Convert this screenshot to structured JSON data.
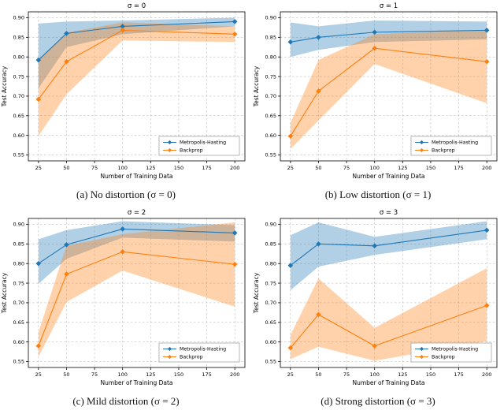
{
  "chart_data": [
    {
      "type": "line",
      "title": "σ = 0",
      "caption": "(a) No distortion (σ = 0)",
      "xlabel": "Number of Training Data",
      "ylabel": "Test Accuracy",
      "x": [
        25,
        50,
        100,
        200
      ],
      "xticks": [
        25,
        50,
        75,
        100,
        125,
        150,
        175,
        200
      ],
      "yticks": [
        0.55,
        0.6,
        0.65,
        0.7,
        0.75,
        0.8,
        0.85,
        0.9
      ],
      "xlim": [
        16,
        209
      ],
      "ylim": [
        0.535,
        0.915
      ],
      "grid": true,
      "legend_position": "lower right",
      "series": [
        {
          "name": "Metropolis-Hasting",
          "color": "#1f77b4",
          "values": [
            0.792,
            0.86,
            0.878,
            0.89
          ],
          "band_low": [
            0.72,
            0.825,
            0.858,
            0.878
          ],
          "band_high": [
            0.885,
            0.89,
            0.893,
            0.9
          ]
        },
        {
          "name": "Backprop",
          "color": "#ff7f0e",
          "values": [
            0.692,
            0.788,
            0.868,
            0.858
          ],
          "band_low": [
            0.598,
            0.705,
            0.842,
            0.838
          ],
          "band_high": [
            0.79,
            0.862,
            0.888,
            0.878
          ]
        }
      ]
    },
    {
      "type": "line",
      "title": "σ = 1",
      "caption": "(b) Low distortion (σ = 1)",
      "xlabel": "Number of Training Data",
      "ylabel": "Test Accuracy",
      "x": [
        25,
        50,
        100,
        200
      ],
      "xticks": [
        25,
        50,
        75,
        100,
        125,
        150,
        175,
        200
      ],
      "yticks": [
        0.55,
        0.6,
        0.65,
        0.7,
        0.75,
        0.8,
        0.85,
        0.9
      ],
      "xlim": [
        16,
        209
      ],
      "ylim": [
        0.535,
        0.915
      ],
      "grid": true,
      "legend_position": "lower right",
      "series": [
        {
          "name": "Metropolis-Hasting",
          "color": "#1f77b4",
          "values": [
            0.838,
            0.85,
            0.863,
            0.868
          ],
          "band_low": [
            0.8,
            0.818,
            0.838,
            0.845
          ],
          "band_high": [
            0.888,
            0.878,
            0.893,
            0.89
          ]
        },
        {
          "name": "Backprop",
          "color": "#ff7f0e",
          "values": [
            0.598,
            0.713,
            0.822,
            0.788
          ],
          "band_low": [
            0.565,
            0.638,
            0.782,
            0.682
          ],
          "band_high": [
            0.632,
            0.792,
            0.858,
            0.868
          ]
        }
      ]
    },
    {
      "type": "line",
      "title": "σ = 2",
      "caption": "(c) Mild distortion (σ = 2)",
      "xlabel": "Number of Training Data",
      "ylabel": "Test Accuracy",
      "x": [
        25,
        50,
        100,
        200
      ],
      "xticks": [
        25,
        50,
        75,
        100,
        125,
        150,
        175,
        200
      ],
      "yticks": [
        0.55,
        0.6,
        0.65,
        0.7,
        0.75,
        0.8,
        0.85,
        0.9
      ],
      "xlim": [
        16,
        209
      ],
      "ylim": [
        0.535,
        0.915
      ],
      "grid": true,
      "legend_position": "lower right",
      "series": [
        {
          "name": "Metropolis-Hasting",
          "color": "#1f77b4",
          "values": [
            0.8,
            0.848,
            0.888,
            0.878
          ],
          "band_low": [
            0.748,
            0.812,
            0.866,
            0.856
          ],
          "band_high": [
            0.862,
            0.885,
            0.908,
            0.898
          ]
        },
        {
          "name": "Backprop",
          "color": "#ff7f0e",
          "values": [
            0.59,
            0.773,
            0.83,
            0.798
          ],
          "band_low": [
            0.562,
            0.702,
            0.782,
            0.69
          ],
          "band_high": [
            0.625,
            0.845,
            0.875,
            0.905
          ]
        }
      ]
    },
    {
      "type": "line",
      "title": "σ = 3",
      "caption": "(d) Strong distortion (σ = 3)",
      "xlabel": "Number of Training Data",
      "ylabel": "Test Accuracy",
      "x": [
        25,
        50,
        100,
        200
      ],
      "xticks": [
        25,
        50,
        75,
        100,
        125,
        150,
        175,
        200
      ],
      "yticks": [
        0.55,
        0.6,
        0.65,
        0.7,
        0.75,
        0.8,
        0.85,
        0.9
      ],
      "xlim": [
        16,
        209
      ],
      "ylim": [
        0.535,
        0.915
      ],
      "grid": true,
      "legend_position": "lower right",
      "series": [
        {
          "name": "Metropolis-Hasting",
          "color": "#1f77b4",
          "values": [
            0.795,
            0.85,
            0.845,
            0.885
          ],
          "band_low": [
            0.732,
            0.792,
            0.822,
            0.862
          ],
          "band_high": [
            0.872,
            0.905,
            0.868,
            0.908
          ]
        },
        {
          "name": "Backprop",
          "color": "#ff7f0e",
          "values": [
            0.585,
            0.67,
            0.59,
            0.693
          ],
          "band_low": [
            0.556,
            0.588,
            0.552,
            0.602
          ],
          "band_high": [
            0.618,
            0.762,
            0.636,
            0.788
          ]
        }
      ]
    }
  ]
}
